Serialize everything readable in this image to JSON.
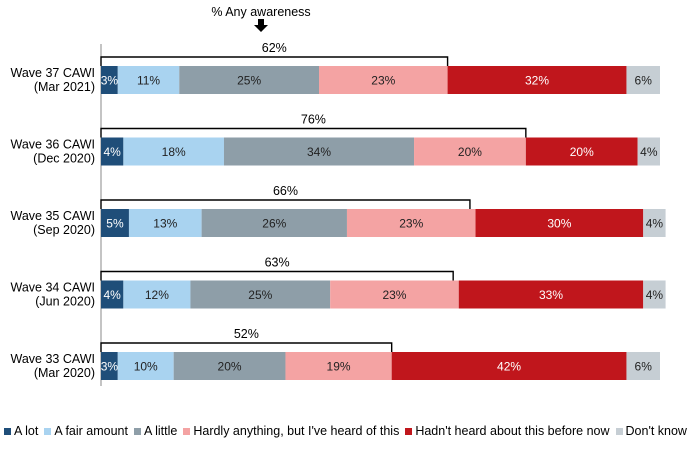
{
  "chart_data": {
    "type": "bar",
    "orientation": "horizontal",
    "stacked": true,
    "percent_stacked": true,
    "awareness_label": "% Any awareness",
    "categories": [
      "Wave 37 CAWI\n(Mar 2021)",
      "Wave 36 CAWI\n(Dec 2020)",
      "Wave 35 CAWI\n(Sep 2020)",
      "Wave 34 CAWI\n(Jun 2020)",
      "Wave 33 CAWI\n(Mar 2020)"
    ],
    "awareness_totals": [
      62,
      76,
      66,
      63,
      52
    ],
    "series": [
      {
        "name": "A lot",
        "color": "#1f4e79",
        "values": [
          3,
          4,
          5,
          4,
          3
        ]
      },
      {
        "name": "A fair amount",
        "color": "#a9d3f0",
        "values": [
          11,
          18,
          13,
          12,
          10
        ]
      },
      {
        "name": "A little",
        "color": "#8e9ea8",
        "values": [
          25,
          34,
          26,
          25,
          20
        ]
      },
      {
        "name": "Hardly anything, but I've heard of this",
        "color": "#f4a3a3",
        "values": [
          23,
          20,
          23,
          23,
          19
        ]
      },
      {
        "name": "Hadn't heard about this before now",
        "color": "#c0161c",
        "values": [
          32,
          20,
          30,
          33,
          42
        ]
      },
      {
        "name": "Don't know",
        "color": "#c6ced4",
        "values": [
          6,
          4,
          4,
          4,
          6
        ]
      }
    ],
    "value_suffix": "%",
    "grid": false,
    "legend_position": "bottom"
  }
}
